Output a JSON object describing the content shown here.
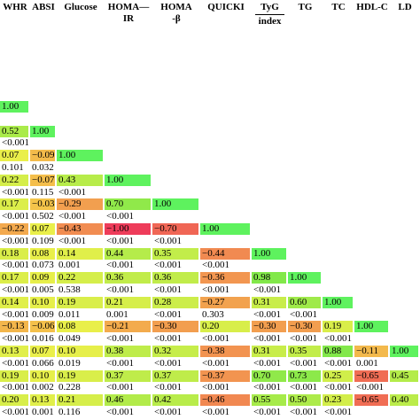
{
  "header": [
    [
      "WHR"
    ],
    [
      "ABSI"
    ],
    [
      "Glucose"
    ],
    [
      "HOMA—",
      "IR"
    ],
    [
      "HOMA",
      "-β"
    ],
    [
      "QUICKI"
    ],
    [
      "TyG",
      "index"
    ],
    [
      "TG"
    ],
    [
      "TC"
    ],
    [
      "HDL-C"
    ],
    [
      "LD"
    ]
  ],
  "rows": [
    [
      "1.00"
    ],
    [],
    [
      "0.52",
      "1.00"
    ],
    [
      "<0.001"
    ],
    [
      "0.07",
      "−0.09",
      "1.00"
    ],
    [
      "0.101",
      "0.032"
    ],
    [
      "0.22",
      "−0.07",
      "0.43",
      "1.00"
    ],
    [
      "<0.001",
      "0.115",
      "<0.001"
    ],
    [
      "0.17",
      "−0.03",
      "−0.29",
      "0.70",
      "1.00"
    ],
    [
      "<0.001",
      "0.502",
      "<0.001",
      "<0.001"
    ],
    [
      "−0.22",
      "0.07",
      "−0.43",
      "−1.00",
      "−0.70",
      "1.00"
    ],
    [
      "<0.001",
      "0.109",
      "<0.001",
      "<0.001",
      "<0.001"
    ],
    [
      "0.18",
      "0.08",
      "0.14",
      "0.44",
      "0.35",
      "−0.44",
      "1.00"
    ],
    [
      "<0.001",
      "0.073",
      "0.001",
      "<0.001",
      "<0.001",
      "<0.001"
    ],
    [
      "0.17",
      "0.09",
      "0.22",
      "0.36",
      "0.36",
      "−0.36",
      "0.98",
      "1.00"
    ],
    [
      "<0.001",
      "0.005",
      "0.538",
      "<0.001",
      "<0.001",
      "<0.001",
      "<0.001"
    ],
    [
      "0.14",
      "0.10",
      "0.19",
      "0.21",
      "0.28",
      "−0.27",
      "0.31",
      "0.60",
      "1.00"
    ],
    [
      "<0.001",
      "0.009",
      "0.011",
      "0.001",
      "<0.001",
      "0.303",
      "<0.001",
      "<0.001"
    ],
    [
      "−0.13",
      "−0.06",
      "0.08",
      "−0.21",
      "−0.30",
      "0.20",
      "−0.30",
      "−0.30",
      "0.19",
      "1.00"
    ],
    [
      "<0.001",
      "0.016",
      "0.049",
      "<0.001",
      "<0.001",
      "<0.001",
      "<0.001",
      "<0.001",
      "<0.001"
    ],
    [
      "0.13",
      "0.07",
      "0.10",
      "0.38",
      "0.32",
      "−0.38",
      "0.31",
      "0.35",
      "0.88",
      "−0.11",
      "1.00"
    ],
    [
      "<0.001",
      "0.066",
      "0.019",
      "<0.001",
      "<0.001",
      "<0.001",
      "<0.001",
      "<0.001",
      "<0.001",
      "0.001"
    ],
    [
      "0.19",
      "0.10",
      "0.19",
      "0.37",
      "0.37",
      "−0.37",
      "0.70",
      "0.73",
      "0.25",
      "−0.65",
      "0.45"
    ],
    [
      "<0.001",
      "0.002",
      "0.228",
      "<0.001",
      "<0.001",
      "<0.001",
      "<0.001",
      "<0.001",
      "<0.001",
      "<0.001"
    ],
    [
      "0.20",
      "0.13",
      "0.21",
      "0.46",
      "0.42",
      "−0.46",
      "0.55",
      "0.50",
      "0.23",
      "−0.65",
      "0.40"
    ],
    [
      "<0.001",
      "0.001",
      "0.116",
      "<0.001",
      "<0.001",
      "<0.001",
      "<0.001",
      "<0.001",
      "<0.001"
    ]
  ]
}
